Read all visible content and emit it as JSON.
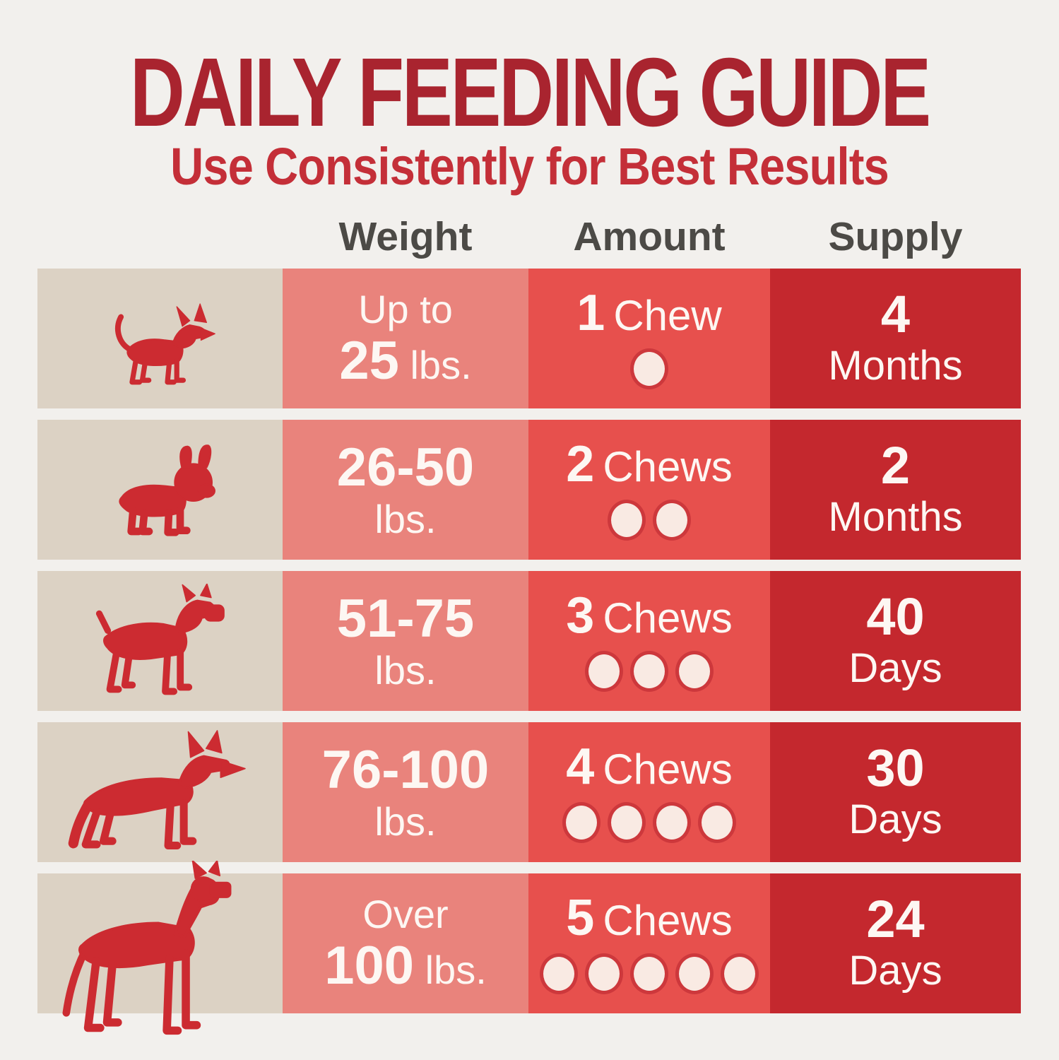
{
  "page": {
    "background": "#f2f0ed"
  },
  "header": {
    "title": "DAILY FEEDING GUIDE",
    "subtitle": "Use Consistently for Best Results",
    "title_color": "#a9242f",
    "subtitle_color": "#c42f38"
  },
  "table": {
    "column_headers": [
      {
        "key": "weight",
        "label": "Weight"
      },
      {
        "key": "amount",
        "label": "Amount"
      },
      {
        "key": "supply",
        "label": "Supply"
      }
    ],
    "header_text_color": "#4c4a46",
    "colors": {
      "dog_column_bg": "#dcd2c4",
      "weight_column_bg": "#e9837c",
      "amount_column_bg": "#e7504d",
      "supply_column_bg": "#c4282e",
      "dog_silhouette": "#cc2b31",
      "cell_text": "#fdf7f3",
      "chew_dot_fill": "#f9eae3",
      "chew_dot_ring": "#cd383c"
    },
    "rows": [
      {
        "dog_icon": "chihuahua-icon",
        "weight_lines": [
          [
            {
              "t": "Up to",
              "b": false
            }
          ],
          [
            {
              "t": "25",
              "b": true
            },
            {
              "t": " lbs.",
              "b": false
            }
          ]
        ],
        "amount": {
          "value": "1",
          "unit": "Chew",
          "chews": 1
        },
        "supply": {
          "value": "4",
          "unit": "Months"
        }
      },
      {
        "dog_icon": "french-bulldog-icon",
        "weight_lines": [
          [
            {
              "t": "26-50",
              "b": true
            }
          ],
          [
            {
              "t": "lbs.",
              "b": false
            }
          ]
        ],
        "amount": {
          "value": "2",
          "unit": "Chews",
          "chews": 2
        },
        "supply": {
          "value": "2",
          "unit": "Months"
        }
      },
      {
        "dog_icon": "boxer-icon",
        "weight_lines": [
          [
            {
              "t": "51-75",
              "b": true
            }
          ],
          [
            {
              "t": "lbs.",
              "b": false
            }
          ]
        ],
        "amount": {
          "value": "3",
          "unit": "Chews",
          "chews": 3
        },
        "supply": {
          "value": "40",
          "unit": "Days"
        }
      },
      {
        "dog_icon": "german-shepherd-icon",
        "weight_lines": [
          [
            {
              "t": "76-100",
              "b": true
            }
          ],
          [
            {
              "t": "lbs.",
              "b": false
            }
          ]
        ],
        "amount": {
          "value": "4",
          "unit": "Chews",
          "chews": 4
        },
        "supply": {
          "value": "30",
          "unit": "Days"
        }
      },
      {
        "dog_icon": "great-dane-icon",
        "weight_lines": [
          [
            {
              "t": "Over",
              "b": false
            }
          ],
          [
            {
              "t": "100",
              "b": true
            },
            {
              "t": " lbs.",
              "b": false
            }
          ]
        ],
        "amount": {
          "value": "5",
          "unit": "Chews",
          "chews": 5
        },
        "supply": {
          "value": "24",
          "unit": "Days"
        }
      }
    ]
  },
  "chart_data": {
    "type": "table",
    "title": "DAILY FEEDING GUIDE",
    "subtitle": "Use Consistently for Best Results",
    "columns": [
      "Weight",
      "Amount",
      "Supply"
    ],
    "rows": [
      {
        "dog": "chihuahua (smallest)",
        "weight": "Up to 25 lbs.",
        "amount": "1 Chew",
        "supply": "4 Months"
      },
      {
        "dog": "french bulldog (small)",
        "weight": "26-50 lbs.",
        "amount": "2 Chews",
        "supply": "2 Months"
      },
      {
        "dog": "boxer (medium)",
        "weight": "51-75 lbs.",
        "amount": "3 Chews",
        "supply": "40 Days"
      },
      {
        "dog": "german shepherd (large)",
        "weight": "76-100 lbs.",
        "amount": "4 Chews",
        "supply": "30 Days"
      },
      {
        "dog": "great dane (largest)",
        "weight": "Over 100 lbs.",
        "amount": "5 Chews",
        "supply": "24 Days"
      }
    ]
  }
}
